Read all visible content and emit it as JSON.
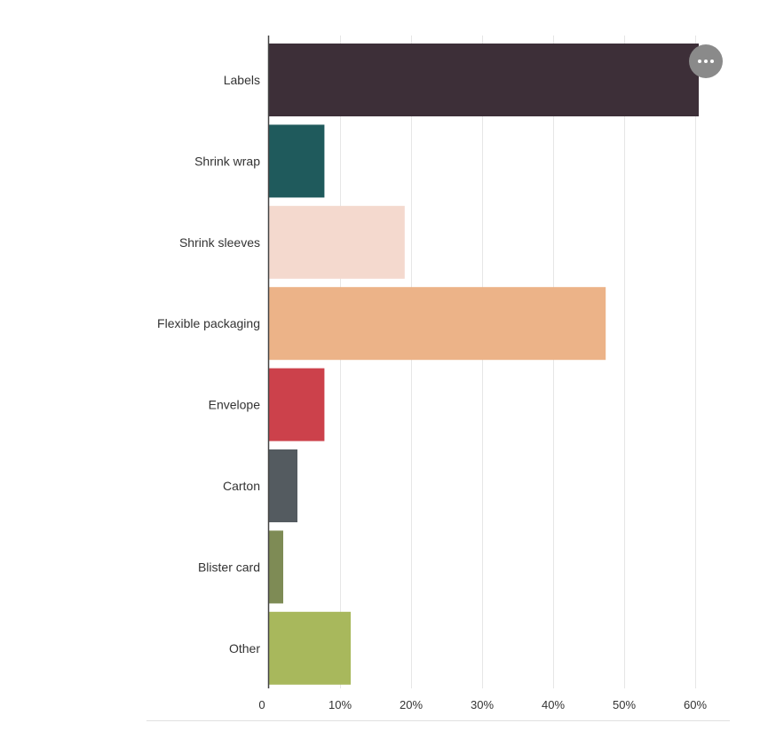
{
  "chart_data": {
    "type": "bar",
    "orientation": "horizontal",
    "categories": [
      "Labels",
      "Shrink wrap",
      "Shrink sleeves",
      "Flexible packaging",
      "Envelope",
      "Carton",
      "Blister card",
      "Other"
    ],
    "values": [
      60.5,
      7.8,
      19.1,
      47.4,
      7.8,
      4.0,
      2.0,
      11.5
    ],
    "colors": [
      "#3d2f38",
      "#1f5a5c",
      "#f4d9ce",
      "#ecb388",
      "#cc414b",
      "#545b60",
      "#7e8b55",
      "#a8b85c"
    ],
    "xlim": [
      0,
      60
    ],
    "xticks": [
      0,
      10,
      20,
      30,
      40,
      50,
      60
    ],
    "xtick_labels": [
      "0",
      "10%",
      "20%",
      "30%",
      "40%",
      "50%",
      "60%"
    ],
    "grid": "vertical",
    "title": "",
    "xlabel": "",
    "ylabel": ""
  },
  "menu_button": {
    "icon": "ellipsis-icon",
    "color": "#8a8a8a"
  }
}
